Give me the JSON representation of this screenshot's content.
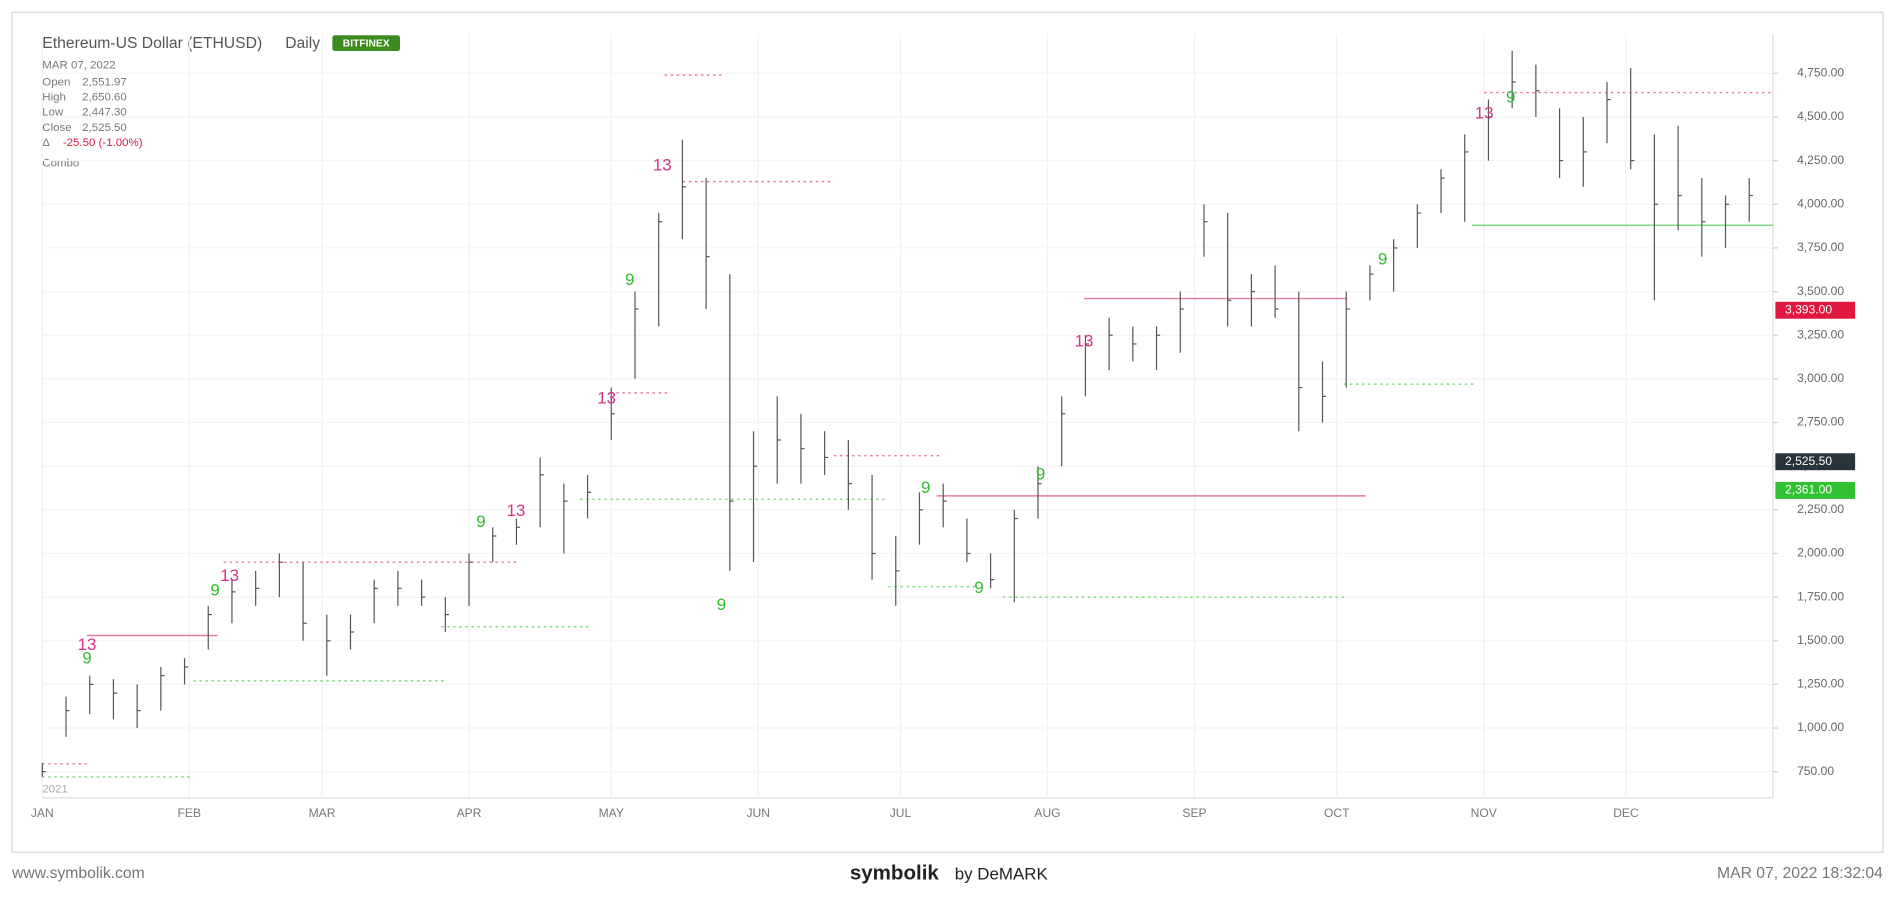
{
  "header": {
    "title": "Ethereum-US Dollar (ETHUSD)",
    "interval": "Daily",
    "exchange": "BITFINEX",
    "date": "MAR 07, 2022",
    "info": [
      {
        "label": "Open",
        "value": "2,551.97"
      },
      {
        "label": "High",
        "value": "2,650.60"
      },
      {
        "label": "Low",
        "value": "2,447.30"
      },
      {
        "label": "Close",
        "value": "2,525.50"
      }
    ],
    "delta_label": "Δ",
    "delta": "-25.50 (-1.00%)",
    "study": "Combo"
  },
  "chart_data": {
    "type": "ohlc",
    "color": "#555555",
    "grid": true,
    "year_label": "2021",
    "ylim": [
      600,
      4975
    ],
    "yticks": [
      {
        "value": 750,
        "label": "750.00"
      },
      {
        "value": 1000,
        "label": "1,000.00"
      },
      {
        "value": 1250,
        "label": "1,250.00"
      },
      {
        "value": 1500,
        "label": "1,500.00"
      },
      {
        "value": 1750,
        "label": "1,750.00"
      },
      {
        "value": 2000,
        "label": "2,000.00"
      },
      {
        "value": 2250,
        "label": "2,250.00"
      },
      {
        "value": 2500,
        "label": "2,500.00"
      },
      {
        "value": 2750,
        "label": "2,750.00"
      },
      {
        "value": 3000,
        "label": "3,000.00"
      },
      {
        "value": 3250,
        "label": "3,250.00"
      },
      {
        "value": 3500,
        "label": "3,500.00"
      },
      {
        "value": 3750,
        "label": "3,750.00"
      },
      {
        "value": 4000,
        "label": "4,000.00"
      },
      {
        "value": 4250,
        "label": "4,250.00"
      },
      {
        "value": 4500,
        "label": "4,500.00"
      },
      {
        "value": 4750,
        "label": "4,750.00"
      }
    ],
    "months": [
      "JAN",
      "FEB",
      "MAR",
      "APR",
      "MAY",
      "JUN",
      "JUL",
      "AUG",
      "SEP",
      "OCT",
      "NOV",
      "DEC"
    ],
    "high": [
      800,
      1180,
      1300,
      1280,
      1250,
      1350,
      1400,
      1700,
      1850,
      1900,
      2000,
      1950,
      1650,
      1650,
      1850,
      1900,
      1850,
      1750,
      2000,
      2150,
      2200,
      2550,
      2400,
      2450,
      2950,
      3500,
      3950,
      4370,
      4150,
      3600,
      2700,
      2900,
      2800,
      2700,
      2650,
      2450,
      2100,
      2350,
      2400,
      2200,
      2000,
      2250,
      2500,
      2900,
      3250,
      3350,
      3300,
      3300,
      3500,
      4000,
      3950,
      3600,
      3650,
      3500,
      3100,
      3500,
      3650,
      3800,
      4000,
      4200,
      4400,
      4600,
      4880,
      4800,
      4550,
      4500,
      4700,
      4780,
      4400,
      4450,
      4150,
      4050,
      4150
    ],
    "low": [
      720,
      950,
      1080,
      1050,
      1000,
      1100,
      1250,
      1450,
      1600,
      1700,
      1750,
      1500,
      1300,
      1450,
      1600,
      1700,
      1700,
      1550,
      1700,
      1950,
      2050,
      2150,
      2000,
      2200,
      2650,
      3000,
      3300,
      3800,
      3400,
      1900,
      1950,
      2400,
      2400,
      2450,
      2250,
      1850,
      1700,
      2050,
      2150,
      1950,
      1800,
      1720,
      2200,
      2500,
      2900,
      3050,
      3100,
      3050,
      3150,
      3700,
      3300,
      3300,
      3350,
      2700,
      2750,
      2950,
      3450,
      3500,
      3750,
      3950,
      3900,
      4250,
      4550,
      4500,
      4150,
      4100,
      4350,
      4200,
      3450,
      3850,
      3700,
      3750,
      3900
    ],
    "close": [
      750,
      1100,
      1250,
      1200,
      1100,
      1300,
      1350,
      1650,
      1780,
      1800,
      1950,
      1600,
      1500,
      1550,
      1800,
      1800,
      1750,
      1650,
      1950,
      2100,
      2150,
      2450,
      2300,
      2350,
      2800,
      3400,
      3900,
      4100,
      3700,
      2300,
      2500,
      2650,
      2600,
      2550,
      2400,
      2000,
      1900,
      2250,
      2300,
      2000,
      1850,
      2200,
      2400,
      2800,
      3200,
      3250,
      3200,
      3250,
      3400,
      3900,
      3450,
      3500,
      3400,
      2950,
      2900,
      3400,
      3600,
      3750,
      3950,
      4150,
      4300,
      4500,
      4700,
      4650,
      4250,
      4300,
      4600,
      4250,
      4000,
      4050,
      3900,
      4000,
      4050
    ],
    "levels": [
      {
        "value": 1530,
        "color": "#e879a6",
        "style": "solid"
      },
      {
        "value": 1950,
        "color": "#e879a6",
        "style": "dotted"
      },
      {
        "value": 4130,
        "color": "#e879a6",
        "style": "dotted"
      },
      {
        "value": 4740,
        "color": "#e879a6",
        "style": "dotted"
      },
      {
        "value": 2920,
        "color": "#e879a6",
        "style": "dotted"
      },
      {
        "value": 2560,
        "color": "#e879a6",
        "style": "dotted"
      },
      {
        "value": 2330,
        "color": "#e879a6",
        "style": "solid"
      },
      {
        "value": 3460,
        "color": "#e879a6",
        "style": "solid"
      },
      {
        "value": 4640,
        "color": "#e879a6",
        "style": "dotted"
      },
      {
        "value": 795,
        "color": "#e879a6",
        "style": "dotted"
      },
      {
        "value": 3880,
        "color": "#7ddc7d",
        "style": "solid"
      },
      {
        "value": 1750,
        "color": "#7ddc7d",
        "style": "dotted"
      },
      {
        "value": 2970,
        "color": "#7ddc7d",
        "style": "dotted"
      },
      {
        "value": 1810,
        "color": "#7ddc7d",
        "style": "dotted"
      },
      {
        "value": 1580,
        "color": "#7ddc7d",
        "style": "dotted"
      },
      {
        "value": 1270,
        "color": "#7ddc7d",
        "style": "dotted"
      },
      {
        "value": 720,
        "color": "#7ddc7d",
        "style": "dotted"
      },
      {
        "value": 2310,
        "color": "#7ddc7d",
        "style": "dotted"
      }
    ],
    "annotations": [
      {
        "text": "13",
        "color": "#d63384"
      },
      {
        "text": "9",
        "color": "#2dbf2d"
      },
      {
        "text": "13",
        "color": "#d63384"
      },
      {
        "text": "9",
        "color": "#2dbf2d"
      },
      {
        "text": "9",
        "color": "#2dbf2d"
      },
      {
        "text": "13",
        "color": "#d63384"
      },
      {
        "text": "13",
        "color": "#d63384"
      },
      {
        "text": "13",
        "color": "#d63384"
      },
      {
        "text": "9",
        "color": "#2dbf2d"
      },
      {
        "text": "9",
        "color": "#2dbf2d"
      },
      {
        "text": "9",
        "color": "#2dbf2d"
      },
      {
        "text": "9",
        "color": "#2dbf2d"
      },
      {
        "text": "9",
        "color": "#2dbf2d"
      },
      {
        "text": "13",
        "color": "#d63384"
      },
      {
        "text": "9",
        "color": "#2dbf2d"
      },
      {
        "text": "13",
        "color": "#d63384"
      },
      {
        "text": "9",
        "color": "#2dbf2d"
      }
    ],
    "price_tags": [
      {
        "value": 3393,
        "label": "3,393.00",
        "color": "#e0173f"
      },
      {
        "value": 2525.5,
        "label": "2,525.50",
        "color": "#27343c"
      },
      {
        "value": 2361,
        "label": "2,361.00",
        "color": "#2fc12f"
      }
    ]
  },
  "footer": {
    "site": "www.symbolik.com",
    "brand": "symbolik",
    "by": "by DeMARK",
    "timestamp": "MAR 07, 2022 18:32:04"
  }
}
